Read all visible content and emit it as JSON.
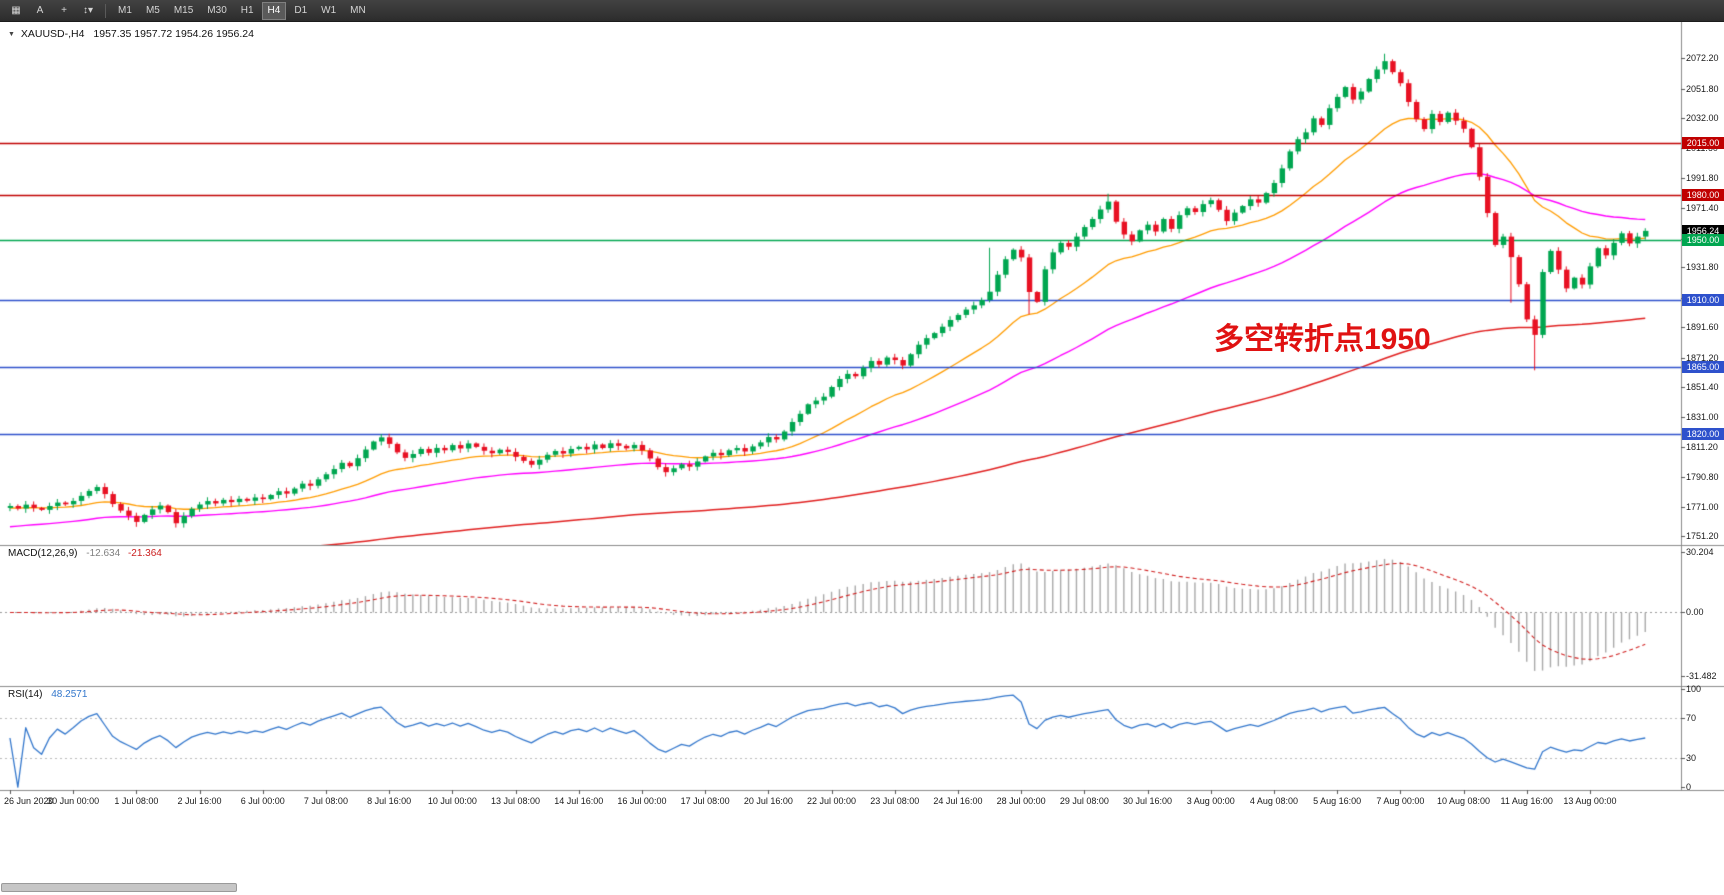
{
  "toolbar": {
    "icon_buttons": [
      {
        "name": "chart-layout",
        "glyph": "▦"
      },
      {
        "name": "cursor-tool",
        "glyph": "A"
      },
      {
        "name": "crosshair-tool",
        "glyph": "+"
      },
      {
        "name": "drawing-tools",
        "glyph": "↕▾"
      }
    ],
    "timeframes": [
      "M1",
      "M5",
      "M15",
      "M30",
      "H1",
      "H4",
      "D1",
      "W1",
      "MN"
    ],
    "active_timeframe": "H4"
  },
  "chart": {
    "symbol_marker": "▼",
    "symbol": "XAUUSD-,H4",
    "ohlc": "1957.35 1957.72 1954.26 1956.24",
    "annotation": {
      "text": "多空转折点1950",
      "color": "#e01212"
    },
    "macd_title": "MACD(12,26,9)",
    "macd_value_main": "-12.634",
    "macd_value_signal": "-21.364",
    "rsi_title": "RSI(14)",
    "rsi_value": "48.2571"
  },
  "chart_data": {
    "type": "candlestick",
    "symbol": "XAUUSD",
    "timeframe": "H4",
    "x_labels": [
      "26 Jun 2020",
      "30 Jun 00:00",
      "1 Jul 08:00",
      "2 Jul 16:00",
      "6 Jul 00:00",
      "7 Jul 08:00",
      "8 Jul 16:00",
      "10 Jul 00:00",
      "13 Jul 08:00",
      "14 Jul 16:00",
      "16 Jul 00:00",
      "17 Jul 08:00",
      "20 Jul 16:00",
      "22 Jul 00:00",
      "23 Jul 08:00",
      "24 Jul 16:00",
      "28 Jul 00:00",
      "29 Jul 08:00",
      "30 Jul 16:00",
      "3 Aug 00:00",
      "4 Aug 08:00",
      "5 Aug 16:00",
      "7 Aug 00:00",
      "10 Aug 08:00",
      "11 Aug 16:00",
      "13 Aug 00:00"
    ],
    "y_ticks": [
      "2072.20",
      "2051.80",
      "2032.00",
      "2011.60",
      "1991.80",
      "1971.40",
      "1951.00",
      "1931.80",
      "1911.40",
      "1891.60",
      "1871.20",
      "1851.40",
      "1831.00",
      "1811.20",
      "1790.80",
      "1771.00",
      "1751.20"
    ],
    "macd_ticks": [
      "30.204",
      "0.00",
      "-31.482"
    ],
    "rsi_ticks": [
      "100",
      "70",
      "30",
      "0"
    ],
    "rsi_levels": [
      70,
      30
    ],
    "axes": {
      "price_min": 1745.3,
      "price_max": 2096.5,
      "macd_min": -36.5,
      "macd_max": 33.5,
      "rsi_min": -3,
      "rsi_max": 103
    },
    "open_first": 1770.2,
    "closes": [
      1771.5,
      1769.8,
      1772.4,
      1770.2,
      1768.9,
      1771.5,
      1773.8,
      1772.6,
      1774.9,
      1778.3,
      1781.6,
      1784.2,
      1779.5,
      1772.8,
      1768.4,
      1764.9,
      1760.8,
      1765.5,
      1769.2,
      1771.8,
      1767.4,
      1759.9,
      1764.8,
      1769.6,
      1772.5,
      1774.8,
      1773.2,
      1775.6,
      1774.1,
      1776.3,
      1775.0,
      1777.2,
      1776.1,
      1778.9,
      1781.4,
      1779.8,
      1783.2,
      1786.5,
      1785.1,
      1789.4,
      1792.8,
      1796.3,
      1800.5,
      1798.2,
      1803.6,
      1809.4,
      1814.8,
      1817.6,
      1813.2,
      1807.5,
      1803.8,
      1806.4,
      1809.8,
      1807.2,
      1810.5,
      1808.9,
      1812.4,
      1810.1,
      1813.5,
      1811.2,
      1808.6,
      1806.9,
      1809.3,
      1807.8,
      1804.5,
      1801.8,
      1799.2,
      1802.6,
      1805.9,
      1808.4,
      1806.7,
      1809.8,
      1811.2,
      1809.5,
      1812.8,
      1810.4,
      1813.6,
      1811.9,
      1810.2,
      1812.5,
      1808.8,
      1803.4,
      1797.6,
      1794.2,
      1796.8,
      1799.5,
      1797.9,
      1801.4,
      1804.8,
      1807.2,
      1805.6,
      1808.9,
      1810.4,
      1808.1,
      1811.5,
      1814.2,
      1817.8,
      1816.2,
      1821.5,
      1827.9,
      1833.4,
      1839.8,
      1842.3,
      1844.9,
      1851.4,
      1856.8,
      1860.2,
      1858.6,
      1864.3,
      1868.9,
      1866.4,
      1871.2,
      1869.5,
      1865.8,
      1873.4,
      1879.8,
      1884.2,
      1887.6,
      1891.9,
      1896.4,
      1899.8,
      1903.4,
      1906.2,
      1909.8,
      1915.4,
      1926.8,
      1937.2,
      1943.6,
      1938.4,
      1915.2,
      1908.6,
      1930.4,
      1941.8,
      1948.2,
      1945.6,
      1952.4,
      1958.8,
      1964.2,
      1970.6,
      1975.9,
      1962.4,
      1953.8,
      1949.2,
      1956.6,
      1960.4,
      1955.8,
      1964.2,
      1957.6,
      1966.8,
      1971.4,
      1968.9,
      1974.2,
      1976.8,
      1970.4,
      1962.8,
      1968.5,
      1972.9,
      1977.4,
      1975.2,
      1981.6,
      1988.4,
      1998.2,
      2009.6,
      2017.8,
      2022.4,
      2031.8,
      2027.4,
      2038.6,
      2046.2,
      2052.8,
      2044.4,
      2049.8,
      2058.2,
      2064.6,
      2070.2,
      2062.8,
      2055.4,
      2042.8,
      2031.2,
      2024.6,
      2034.8,
      2029.4,
      2035.6,
      2030.2,
      2024.8,
      2012.4,
      1992.6,
      1968.2,
      1946.8,
      1952.4,
      1938.6,
      1920.4,
      1896.8,
      1886.4,
      1928.6,
      1942.8,
      1930.2,
      1917.6,
      1924.8,
      1920.2,
      1932.4,
      1944.6,
      1939.8,
      1948.2,
      1954.6,
      1947.8,
      1952.4,
      1956.24
    ],
    "wick_overrides": {
      "16": {
        "low": 1757.5
      },
      "21": {
        "low": 1757.0
      },
      "47": {
        "high": 1818.6
      },
      "124": {
        "high": 1944.9
      },
      "129": {
        "low": 1900.2
      },
      "139": {
        "high": 1981.2
      },
      "174": {
        "high": 2075.2
      },
      "190": {
        "low": 1908.0
      },
      "193": {
        "low": 1862.6
      }
    },
    "hlines": [
      {
        "label": "2015.00",
        "price": 2015.0,
        "color": "#c00000",
        "draw_line": true
      },
      {
        "label": "1980.00",
        "price": 1980.0,
        "color": "#c00000",
        "draw_line": true
      },
      {
        "label": "1956.24",
        "price": 1956.24,
        "color": "#000000",
        "draw_line": false
      },
      {
        "label": "1950.00",
        "price": 1950.0,
        "color": "#00a650",
        "draw_line": true
      },
      {
        "label": "1910.00",
        "price": 1910.0,
        "color": "#2e51cc",
        "draw_line": true
      },
      {
        "label": "1865.00",
        "price": 1865.0,
        "color": "#2e51cc",
        "draw_line": true
      },
      {
        "label": "1820.00",
        "price": 1820.0,
        "color": "#2e51cc",
        "draw_line": true
      }
    ],
    "style": {
      "up_color": "#00a650",
      "down_color": "#e81123",
      "ma": [
        {
          "period": 21,
          "seed": 1770,
          "color": "#ff9c00",
          "width": 1.3
        },
        {
          "period": 55,
          "seed": 1757,
          "color": "#ff00ff",
          "width": 1.4
        },
        {
          "period": 200,
          "seed": 1730,
          "color": "#e02020",
          "width": 1.5
        }
      ],
      "macd_hist_color": "#a9a9a9",
      "macd_signal_color": "#d02020",
      "rsi_color": "#3377cc"
    },
    "indicators": [
      {
        "name": "MACD",
        "params": "12,26,9",
        "values": [
          -12.634,
          -21.364
        ]
      },
      {
        "name": "RSI",
        "params": "14",
        "value": 48.2571
      }
    ]
  }
}
